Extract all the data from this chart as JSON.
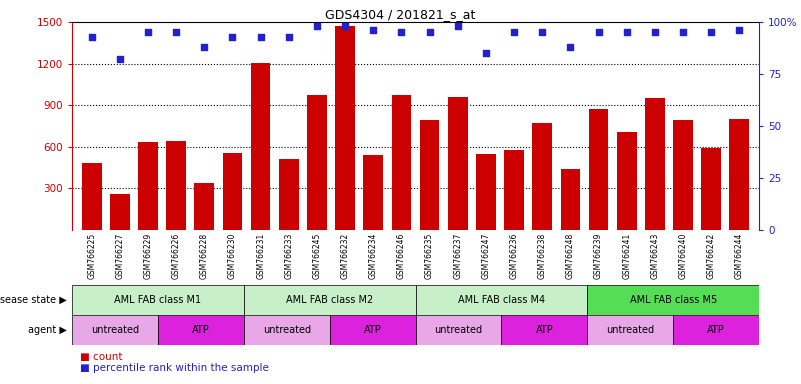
{
  "title": "GDS4304 / 201821_s_at",
  "samples": [
    "GSM766225",
    "GSM766227",
    "GSM766229",
    "GSM766226",
    "GSM766228",
    "GSM766230",
    "GSM766231",
    "GSM766233",
    "GSM766245",
    "GSM766232",
    "GSM766234",
    "GSM766246",
    "GSM766235",
    "GSM766237",
    "GSM766247",
    "GSM766236",
    "GSM766238",
    "GSM766248",
    "GSM766239",
    "GSM766241",
    "GSM766243",
    "GSM766240",
    "GSM766242",
    "GSM766244"
  ],
  "counts": [
    480,
    260,
    635,
    645,
    340,
    555,
    1205,
    510,
    970,
    1470,
    540,
    970,
    790,
    960,
    545,
    575,
    775,
    440,
    870,
    710,
    950,
    790,
    590,
    800
  ],
  "percentile_ranks": [
    93,
    82,
    95,
    95,
    88,
    93,
    93,
    93,
    98,
    98,
    96,
    95,
    95,
    98,
    85,
    95,
    95,
    88,
    95,
    95,
    95,
    95,
    95,
    96
  ],
  "disease_state_groups": [
    {
      "label": "AML FAB class M1",
      "start": 0,
      "end": 6
    },
    {
      "label": "AML FAB class M2",
      "start": 6,
      "end": 12
    },
    {
      "label": "AML FAB class M4",
      "start": 12,
      "end": 18
    },
    {
      "label": "AML FAB class M5",
      "start": 18,
      "end": 24
    }
  ],
  "ds_colors": {
    "AML FAB class M1": "#c8f0c8",
    "AML FAB class M2": "#c8f0c8",
    "AML FAB class M4": "#c8f0c8",
    "AML FAB class M5": "#55dd55"
  },
  "agent_groups": [
    {
      "label": "untreated",
      "start": 0,
      "end": 3
    },
    {
      "label": "ATP",
      "start": 3,
      "end": 6
    },
    {
      "label": "untreated",
      "start": 6,
      "end": 9
    },
    {
      "label": "ATP",
      "start": 9,
      "end": 12
    },
    {
      "label": "untreated",
      "start": 12,
      "end": 15
    },
    {
      "label": "ATP",
      "start": 15,
      "end": 18
    },
    {
      "label": "untreated",
      "start": 18,
      "end": 21
    },
    {
      "label": "ATP",
      "start": 21,
      "end": 24
    }
  ],
  "agent_colors": {
    "untreated": "#e8a8e8",
    "ATP": "#dd22dd"
  },
  "bar_color": "#cc0000",
  "dot_color": "#2222cc",
  "ylim_left": [
    0,
    1500
  ],
  "ylim_right": [
    0,
    100
  ],
  "yticks_left": [
    300,
    600,
    900,
    1200,
    1500
  ],
  "yticks_right": [
    0,
    25,
    50,
    75,
    100
  ],
  "bar_width": 0.7,
  "label_gray": "#d0d0d0"
}
